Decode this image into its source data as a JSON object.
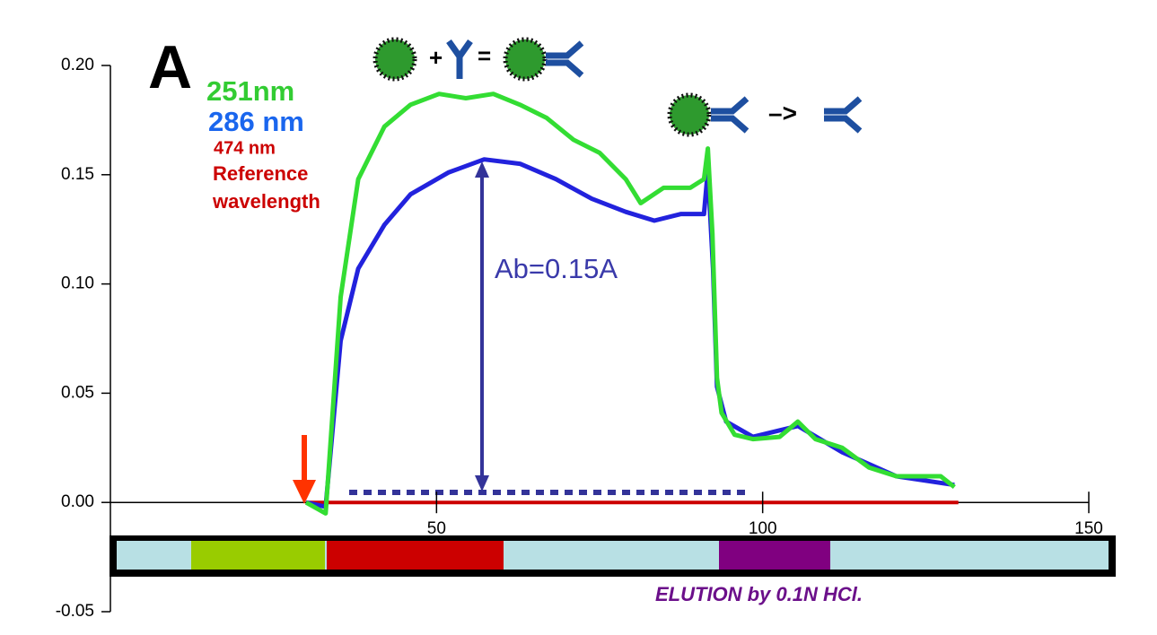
{
  "chart_data": {
    "type": "line",
    "panel_label": "A",
    "xlim": [
      0,
      150
    ],
    "ylim": [
      -0.05,
      0.2
    ],
    "xticks": [
      50,
      100,
      150
    ],
    "yticks": [
      {
        "value": -0.05,
        "label": "-0.05"
      },
      {
        "value": 0,
        "label": "0.00"
      },
      {
        "value": 0.05,
        "label": "0.05"
      },
      {
        "value": 0.1,
        "label": "0.10"
      },
      {
        "value": 0.15,
        "label": "0.15"
      },
      {
        "value": 0.2,
        "label": "0.20"
      }
    ],
    "series": [
      {
        "name": "251nm",
        "color": "#33dd33",
        "x": [
          30,
          33,
          35.3,
          38,
          42,
          46,
          50.4,
          54.5,
          58.7,
          62.8,
          66.9,
          71,
          75,
          79,
          81.3,
          84.8,
          88.9,
          91,
          91.6,
          92.3,
          93,
          93.7,
          95.7,
          98.5,
          102.6,
          105.4,
          108.1,
          112.2,
          116.3,
          120.5,
          127.3,
          129.4
        ],
        "values": [
          0.0,
          -0.005,
          0.094,
          0.148,
          0.172,
          0.182,
          0.187,
          0.185,
          0.187,
          0.182,
          0.176,
          0.166,
          0.16,
          0.148,
          0.137,
          0.144,
          0.144,
          0.148,
          0.162,
          0.123,
          0.057,
          0.041,
          0.031,
          0.029,
          0.03,
          0.037,
          0.029,
          0.025,
          0.016,
          0.012,
          0.012,
          0.007
        ]
      },
      {
        "name": "286 nm",
        "color": "#2222dd",
        "x": [
          30,
          33,
          35.3,
          38,
          42,
          46,
          51.8,
          57.3,
          62.8,
          68.3,
          73.8,
          79,
          83.4,
          87.5,
          91,
          91.6,
          92.4,
          93,
          94.4,
          98.5,
          105.4,
          112.2,
          120.5,
          129.4
        ],
        "values": [
          0.0,
          -0.002,
          0.074,
          0.107,
          0.127,
          0.141,
          0.151,
          0.157,
          0.155,
          0.148,
          0.139,
          0.133,
          0.129,
          0.132,
          0.132,
          0.152,
          0.107,
          0.053,
          0.037,
          0.03,
          0.035,
          0.023,
          0.012,
          0.008
        ]
      },
      {
        "name": "474 nm",
        "color": "#cc0000",
        "x": [
          30,
          130
        ],
        "values": [
          0,
          0
        ]
      }
    ],
    "reference_label": [
      "Reference",
      "wavelength"
    ],
    "peak_annotation": "Ab=0.15A",
    "elution_label": "ELUTION by 0.1N HCl.",
    "equation": [
      "+",
      "=",
      "–>"
    ]
  }
}
